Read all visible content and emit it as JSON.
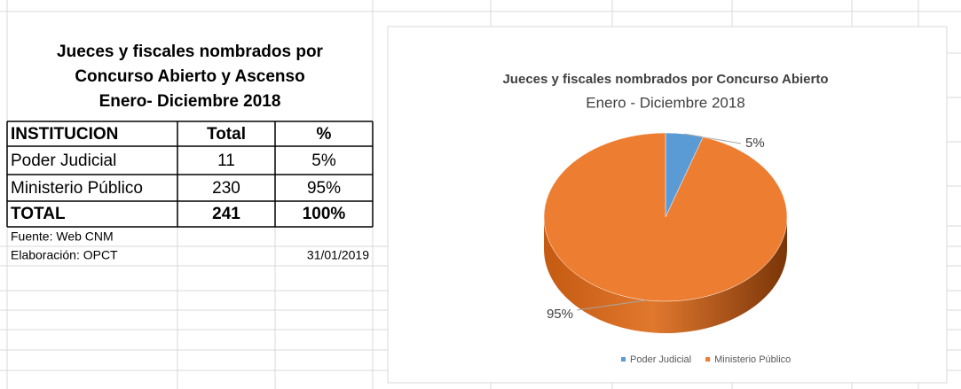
{
  "table": {
    "title": [
      "Jueces y fiscales nombrados por",
      "Concurso Abierto y Ascenso",
      "Enero- Diciembre 2018"
    ],
    "headers": [
      "INSTITUCION",
      "Total",
      "%"
    ],
    "rows": [
      [
        "Poder Judicial",
        "11",
        "5%"
      ],
      [
        "Ministerio Público",
        "230",
        "95%"
      ],
      [
        "TOTAL",
        "241",
        "100%"
      ]
    ],
    "source": "Fuente: Web CNM",
    "prepared_by": "Elaboración: OPCT",
    "date": "31/01/2019"
  },
  "chart_data": {
    "type": "pie",
    "title": "Jueces y fiscales  nombrados por Concurso Abierto",
    "subtitle": "Enero - Diciembre 2018",
    "categories": [
      "Poder Judicial",
      "Ministerio Público"
    ],
    "values": [
      5,
      95
    ],
    "value_labels": [
      "5%",
      "95%"
    ],
    "colors": [
      "#5b9bd5",
      "#ed7d31"
    ],
    "legend": "bottom"
  }
}
